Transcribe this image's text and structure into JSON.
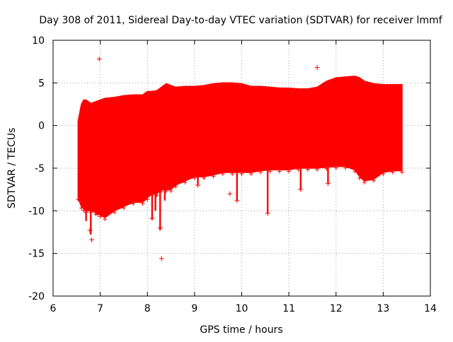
{
  "chart_data": {
    "type": "scatter",
    "title": "Day 308 of 2011, Sidereal Day-to-day VTEC variation (SDTVAR) for receiver lmmf",
    "xlabel": "GPS time / hours",
    "ylabel": "SDTVAR / TECUs",
    "xlim": [
      6,
      14
    ],
    "ylim": [
      -20,
      10
    ],
    "x_ticks": [
      6,
      7,
      8,
      9,
      10,
      11,
      12,
      13,
      14
    ],
    "y_ticks": [
      -20,
      -15,
      -10,
      -5,
      0,
      5,
      10
    ],
    "grid": true,
    "series": [
      {
        "name": "SDTVAR",
        "color": "#ff0000",
        "marker": "+",
        "envelope": {
          "x": [
            6.53,
            6.6,
            6.65,
            6.7,
            6.8,
            6.9,
            7.0,
            7.1,
            7.3,
            7.5,
            7.7,
            7.9,
            8.0,
            8.1,
            8.2,
            8.3,
            8.4,
            8.5,
            8.6,
            8.8,
            9.0,
            9.2,
            9.4,
            9.6,
            9.8,
            10.0,
            10.2,
            10.4,
            10.6,
            10.8,
            11.0,
            11.2,
            11.4,
            11.6,
            11.8,
            12.0,
            12.2,
            12.4,
            12.5,
            12.6,
            12.8,
            13.0,
            13.2,
            13.4
          ],
          "upper": [
            0.5,
            2.5,
            3.0,
            3.0,
            2.6,
            2.8,
            3.0,
            3.2,
            3.3,
            3.5,
            3.6,
            3.6,
            4.0,
            4.0,
            4.1,
            4.5,
            4.9,
            4.7,
            4.5,
            4.6,
            4.6,
            4.7,
            4.9,
            5.0,
            5.0,
            4.9,
            4.6,
            4.6,
            4.5,
            4.4,
            4.4,
            4.3,
            4.3,
            4.5,
            5.2,
            5.6,
            5.7,
            5.8,
            5.6,
            5.2,
            4.9,
            4.8,
            4.8,
            4.8
          ],
          "lower": [
            -8.5,
            -9.5,
            -9.8,
            -10.0,
            -10.0,
            -10.2,
            -10.5,
            -10.8,
            -10.0,
            -9.5,
            -9.0,
            -9.0,
            -8.5,
            -8.0,
            -8.0,
            -7.5,
            -7.5,
            -7.5,
            -7.0,
            -6.5,
            -6.0,
            -6.0,
            -5.8,
            -5.5,
            -5.5,
            -5.5,
            -5.5,
            -5.3,
            -5.2,
            -5.2,
            -5.2,
            -5.0,
            -5.0,
            -5.0,
            -4.9,
            -4.8,
            -4.8,
            -5.2,
            -6.0,
            -6.5,
            -6.3,
            -5.5,
            -5.3,
            -5.3
          ]
        },
        "spikes": [
          {
            "x": 6.7,
            "y_min": -11.2
          },
          {
            "x": 6.8,
            "y_min": -12.8
          },
          {
            "x": 6.92,
            "y_min": -10.5
          },
          {
            "x": 8.1,
            "y_min": -11.0
          },
          {
            "x": 8.17,
            "y_min": -10.0
          },
          {
            "x": 8.27,
            "y_min": -12.3
          },
          {
            "x": 8.37,
            "y_min": -8.8
          },
          {
            "x": 9.07,
            "y_min": -7.0
          },
          {
            "x": 9.9,
            "y_min": -8.8
          },
          {
            "x": 10.55,
            "y_min": -10.3
          },
          {
            "x": 11.25,
            "y_min": -7.5
          },
          {
            "x": 11.83,
            "y_min": -6.8
          }
        ],
        "outliers": [
          {
            "x": 6.98,
            "y": 7.8
          },
          {
            "x": 11.6,
            "y": 6.8
          },
          {
            "x": 8.3,
            "y": -15.6
          },
          {
            "x": 6.82,
            "y": -13.4
          },
          {
            "x": 6.78,
            "y": -12.3
          },
          {
            "x": 6.95,
            "y": -10.4
          },
          {
            "x": 8.1,
            "y": -10.9
          },
          {
            "x": 8.27,
            "y": -12.0
          },
          {
            "x": 9.07,
            "y": -7.0
          },
          {
            "x": 9.75,
            "y": -8.0
          },
          {
            "x": 9.9,
            "y": -8.8
          },
          {
            "x": 10.55,
            "y": -10.3
          },
          {
            "x": 11.25,
            "y": -7.5
          },
          {
            "x": 11.83,
            "y": -6.8
          }
        ]
      }
    ]
  }
}
